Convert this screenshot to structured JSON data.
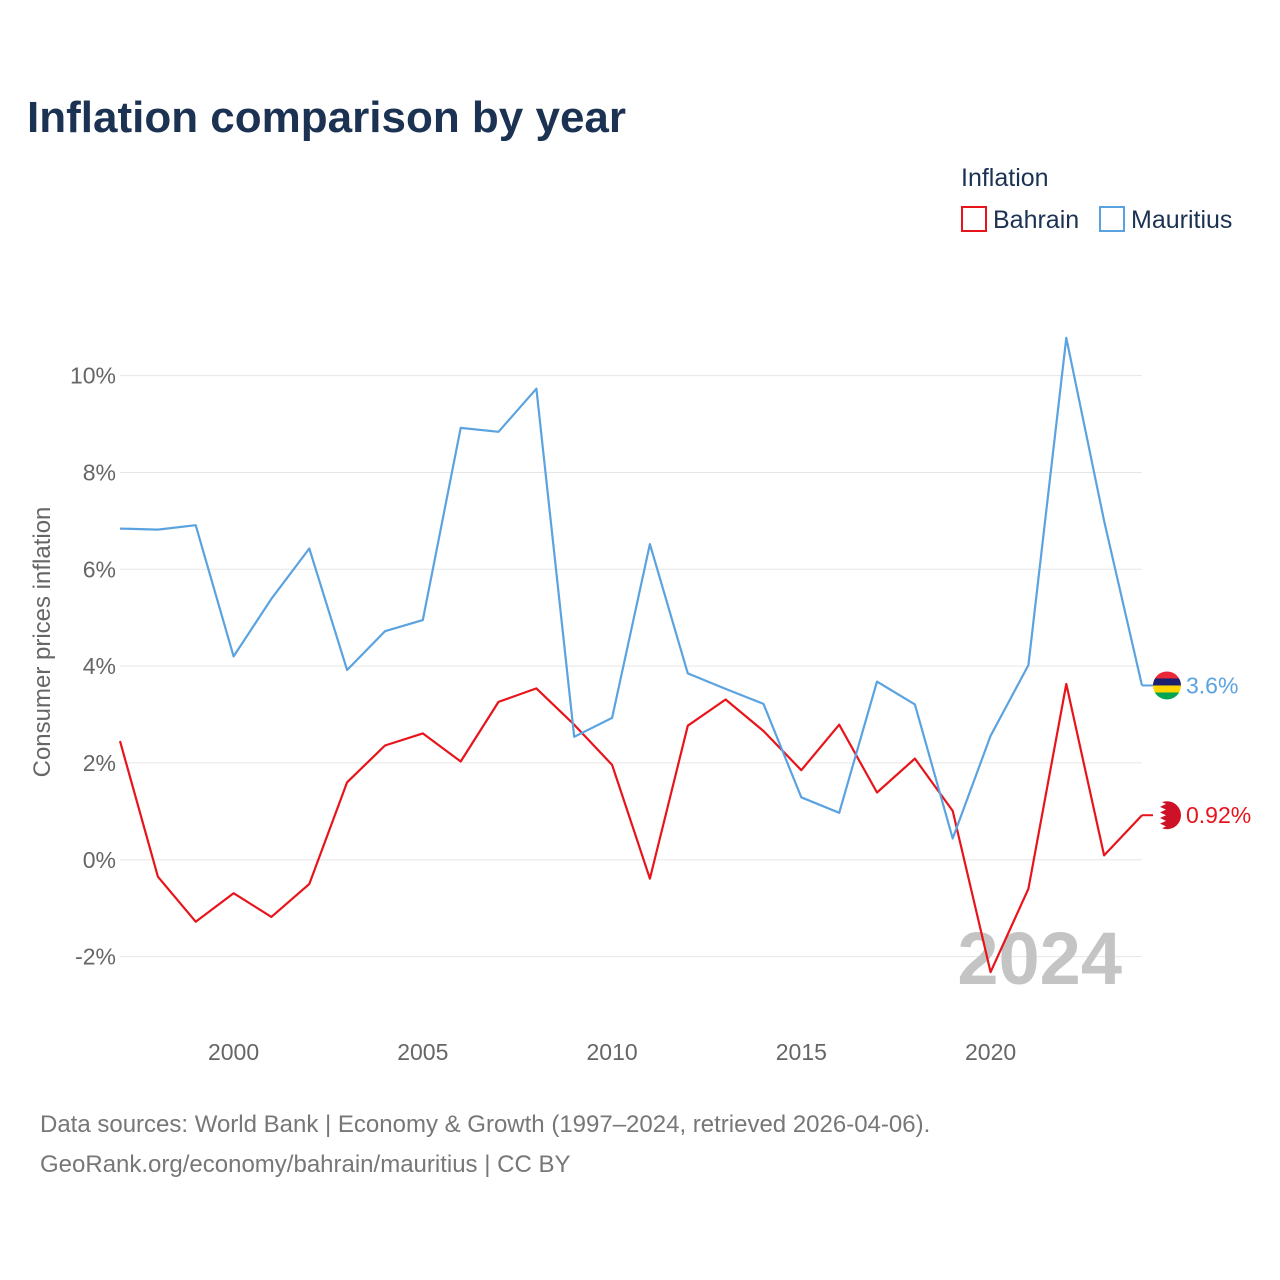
{
  "title": "Inflation comparison by year",
  "legend": {
    "title": "Inflation"
  },
  "year_watermark": "2024",
  "source": {
    "line1": "Data sources: World Bank | Economy & Growth (1997–2024, retrieved 2026-04-06).",
    "line2": "GeoRank.org/economy/bahrain/mauritius | CC BY"
  },
  "chart_data": {
    "type": "line",
    "title": "Inflation comparison by year",
    "xlabel": "",
    "ylabel": "Consumer prices inflation",
    "xlim": [
      1997,
      2024
    ],
    "ylim": [
      -3.0,
      11.5
    ],
    "x_ticks": [
      2000,
      2005,
      2010,
      2015,
      2020
    ],
    "y_ticks": [
      -2,
      0,
      2,
      4,
      6,
      8,
      10
    ],
    "y_tick_labels": [
      "-2%",
      "0%",
      "2%",
      "4%",
      "6%",
      "8%",
      "10%"
    ],
    "x": [
      1997,
      1998,
      1999,
      2000,
      2001,
      2002,
      2003,
      2004,
      2005,
      2006,
      2007,
      2008,
      2009,
      2010,
      2011,
      2012,
      2013,
      2014,
      2015,
      2016,
      2017,
      2018,
      2019,
      2020,
      2021,
      2022,
      2023,
      2024
    ],
    "series": [
      {
        "name": "Bahrain",
        "color": "#e8141b",
        "end_label": "0.92%",
        "values": [
          2.45,
          -0.35,
          -1.28,
          -0.69,
          -1.18,
          -0.5,
          1.6,
          2.36,
          2.61,
          2.03,
          3.26,
          3.54,
          2.79,
          1.96,
          -0.39,
          2.77,
          3.31,
          2.66,
          1.85,
          2.79,
          1.39,
          2.09,
          1.01,
          -2.32,
          -0.6,
          3.63,
          0.09,
          0.92
        ]
      },
      {
        "name": "Mauritius",
        "color": "#5ba3e0",
        "end_label": "3.6%",
        "values": [
          6.84,
          6.82,
          6.91,
          4.2,
          5.39,
          6.43,
          3.92,
          4.72,
          4.95,
          8.92,
          8.84,
          9.73,
          2.54,
          2.93,
          6.52,
          3.85,
          3.53,
          3.22,
          1.29,
          0.97,
          3.68,
          3.21,
          0.44,
          2.56,
          4.02,
          10.78,
          7.0,
          3.6
        ]
      }
    ]
  }
}
